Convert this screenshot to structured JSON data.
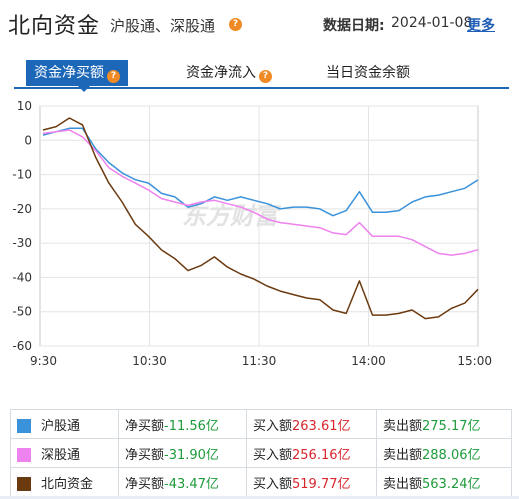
{
  "header": {
    "title": "北向资金",
    "subtitle": "沪股通、深股通",
    "date_label": "数据日期:",
    "date_value": "2024-01-08",
    "more_label": "更多"
  },
  "tabs": [
    {
      "label": "资金净买额",
      "active": true
    },
    {
      "label": "资金净流入",
      "active": false
    },
    {
      "label": "当日资金余额",
      "active": false
    }
  ],
  "watermark": "东方财富",
  "colors": {
    "sh": "#3a92db",
    "sz": "#ee82ee",
    "north": "#6b3a10",
    "accent": "#1c67b8"
  },
  "chart_data": {
    "type": "line",
    "x_ticks": [
      "9:30",
      "10:30",
      "11:30",
      "14:00",
      "15:00"
    ],
    "y_ticks": [
      10,
      0,
      -10,
      -20,
      -30,
      -40,
      -50,
      -60
    ],
    "ylim": [
      -60,
      10
    ],
    "grid": true,
    "series": [
      {
        "name": "沪股通",
        "color": "#3a92db",
        "values": [
          1.5,
          2.5,
          3.5,
          3.5,
          -2.5,
          -6.5,
          -9.5,
          -11.5,
          -12.5,
          -15.5,
          -16.5,
          -19.5,
          -18.5,
          -16.5,
          -17.5,
          -16.5,
          -17.5,
          -18.5,
          -20.0,
          -19.5,
          -19.5,
          -20.0,
          -22.0,
          -20.5,
          -15.0,
          -21.0,
          -21.0,
          -20.5,
          -18.0,
          -16.5,
          -16.0,
          -15.0,
          -14.0,
          -11.56
        ]
      },
      {
        "name": "深股通",
        "color": "#ee82ee",
        "values": [
          2.0,
          2.5,
          3.0,
          1.0,
          -3.0,
          -8.0,
          -10.5,
          -12.5,
          -14.5,
          -17.0,
          -18.0,
          -19.0,
          -18.0,
          -17.5,
          -18.5,
          -19.5,
          -21.0,
          -23.0,
          -24.0,
          -24.5,
          -25.0,
          -25.5,
          -27.0,
          -27.5,
          -24.0,
          -28.0,
          -28.0,
          -28.0,
          -29.0,
          -31.0,
          -33.0,
          -33.5,
          -33.0,
          -31.9
        ]
      },
      {
        "name": "北向资金",
        "color": "#6b3a10",
        "values": [
          3.0,
          4.0,
          6.5,
          4.5,
          -5.0,
          -12.5,
          -18.0,
          -24.5,
          -28.0,
          -32.0,
          -34.5,
          -38.0,
          -36.5,
          -34.0,
          -37.0,
          -39.0,
          -40.5,
          -42.5,
          -44.0,
          -45.0,
          -46.0,
          -46.5,
          -49.5,
          -50.5,
          -41.0,
          -51.0,
          -51.0,
          -50.5,
          -49.5,
          -52.0,
          -51.5,
          -49.0,
          -47.5,
          -43.47
        ]
      }
    ]
  },
  "legend": [
    {
      "name": "沪股通",
      "net_label": "净买额",
      "net": "-11.56亿",
      "buy_label": "买入额",
      "buy": "263.61亿",
      "sell_label": "卖出额",
      "sell": "275.17亿"
    },
    {
      "name": "深股通",
      "net_label": "净买额",
      "net": "-31.90亿",
      "buy_label": "买入额",
      "buy": "256.16亿",
      "sell_label": "卖出额",
      "sell": "288.06亿"
    },
    {
      "name": "北向资金",
      "net_label": "净买额",
      "net": "-43.47亿",
      "buy_label": "买入额",
      "buy": "519.77亿",
      "sell_label": "卖出额",
      "sell": "563.24亿"
    }
  ]
}
